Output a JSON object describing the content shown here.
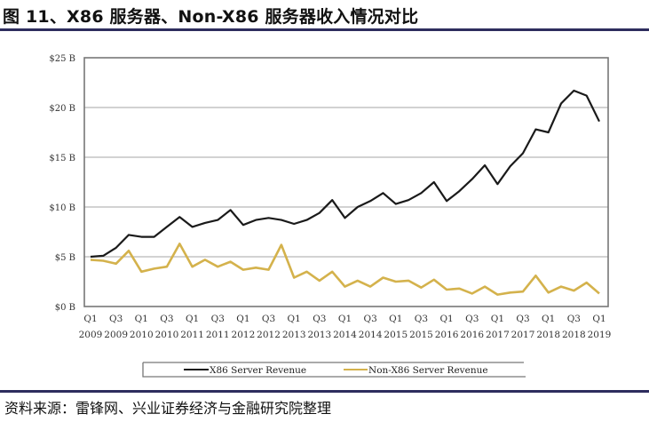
{
  "title": "图 11、X86 服务器、Non-X86 服务器收入情况对比",
  "source": "资料来源：雷锋网、兴业证券经济与金融研究院整理",
  "colors": {
    "rule": "#2e2d5e",
    "x86": "#1a1a1a",
    "non_x86": "#d4b24c",
    "grid": "#b8b8b8",
    "frame": "#777777"
  },
  "chart_data": {
    "type": "line",
    "title": "",
    "xlabel": "",
    "ylabel": "",
    "ylim": [
      0,
      25
    ],
    "yticks": [
      "$0 B",
      "$5 B",
      "$10 B",
      "$15 B",
      "$20 B",
      "$25 B"
    ],
    "ytick_values": [
      0,
      5,
      10,
      15,
      20,
      25
    ],
    "grid": true,
    "legend_position": "bottom",
    "x_tick_labels": [
      {
        "q": "Q1",
        "y": "2009"
      },
      {
        "q": "Q3",
        "y": "2009"
      },
      {
        "q": "Q1",
        "y": "2010"
      },
      {
        "q": "Q3",
        "y": "2010"
      },
      {
        "q": "Q1",
        "y": "2011"
      },
      {
        "q": "Q3",
        "y": "2011"
      },
      {
        "q": "Q1",
        "y": "2012"
      },
      {
        "q": "Q3",
        "y": "2012"
      },
      {
        "q": "Q1",
        "y": "2013"
      },
      {
        "q": "Q3",
        "y": "2013"
      },
      {
        "q": "Q1",
        "y": "2014"
      },
      {
        "q": "Q3",
        "y": "2014"
      },
      {
        "q": "Q1",
        "y": "2015"
      },
      {
        "q": "Q3",
        "y": "2015"
      },
      {
        "q": "Q1",
        "y": "2016"
      },
      {
        "q": "Q3",
        "y": "2016"
      },
      {
        "q": "Q1",
        "y": "2017"
      },
      {
        "q": "Q3",
        "y": "2017"
      },
      {
        "q": "Q1",
        "y": "2018"
      },
      {
        "q": "Q3",
        "y": "2018"
      },
      {
        "q": "Q1",
        "y": "2019"
      }
    ],
    "x": [
      "Q1 2009",
      "Q2 2009",
      "Q3 2009",
      "Q4 2009",
      "Q1 2010",
      "Q2 2010",
      "Q3 2010",
      "Q4 2010",
      "Q1 2011",
      "Q2 2011",
      "Q3 2011",
      "Q4 2011",
      "Q1 2012",
      "Q2 2012",
      "Q3 2012",
      "Q4 2012",
      "Q1 2013",
      "Q2 2013",
      "Q3 2013",
      "Q4 2013",
      "Q1 2014",
      "Q2 2014",
      "Q3 2014",
      "Q4 2014",
      "Q1 2015",
      "Q2 2015",
      "Q3 2015",
      "Q4 2015",
      "Q1 2016",
      "Q2 2016",
      "Q3 2016",
      "Q4 2016",
      "Q1 2017",
      "Q2 2017",
      "Q3 2017",
      "Q4 2017",
      "Q1 2018",
      "Q2 2018",
      "Q3 2018",
      "Q4 2018",
      "Q1 2019"
    ],
    "series": [
      {
        "name": "X86 Server Revenue",
        "color": "#1a1a1a",
        "values": [
          5.0,
          5.1,
          5.9,
          7.2,
          7.0,
          7.0,
          8.0,
          9.0,
          8.0,
          8.4,
          8.7,
          9.7,
          8.2,
          8.7,
          8.9,
          8.7,
          8.3,
          8.7,
          9.4,
          10.7,
          8.9,
          10.0,
          10.6,
          11.4,
          10.3,
          10.7,
          11.4,
          12.5,
          10.6,
          11.6,
          12.8,
          14.2,
          12.3,
          14.1,
          15.4,
          17.8,
          17.5,
          20.4,
          21.7,
          21.2,
          18.6
        ]
      },
      {
        "name": "Non-X86 Server Revenue",
        "color": "#d4b24c",
        "values": [
          4.7,
          4.6,
          4.3,
          5.6,
          3.5,
          3.8,
          4.0,
          6.3,
          4.0,
          4.7,
          4.0,
          4.5,
          3.7,
          3.9,
          3.7,
          6.2,
          2.9,
          3.5,
          2.6,
          3.5,
          2.0,
          2.6,
          2.0,
          2.9,
          2.5,
          2.6,
          1.9,
          2.7,
          1.7,
          1.8,
          1.3,
          2.0,
          1.2,
          1.4,
          1.5,
          3.1,
          1.4,
          2.0,
          1.6,
          2.4,
          1.3
        ]
      }
    ]
  },
  "legend": {
    "items": [
      {
        "label": "X86 Server Revenue"
      },
      {
        "label": "Non-X86 Server Revenue"
      }
    ]
  }
}
